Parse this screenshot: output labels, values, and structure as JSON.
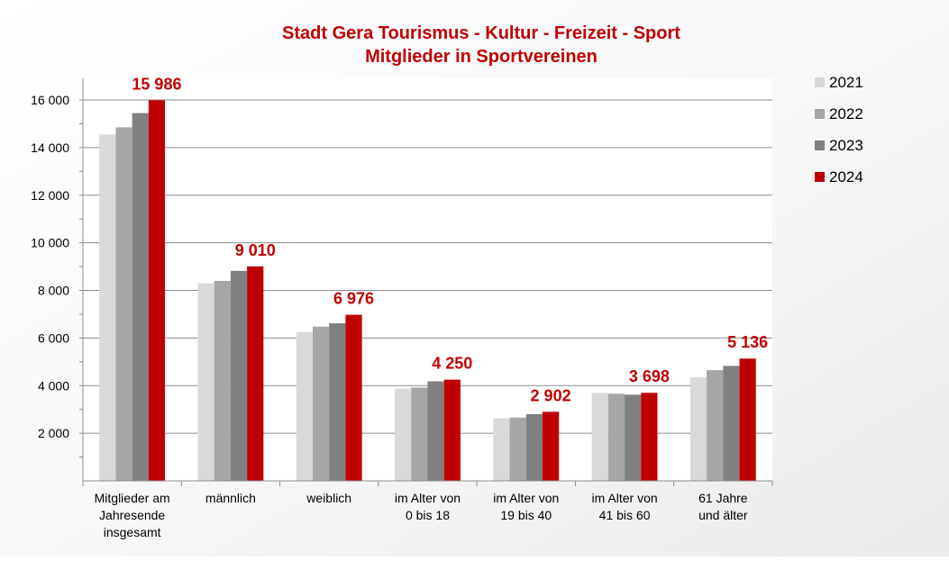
{
  "chart_data": {
    "type": "bar",
    "title": "Stadt Gera Tourismus - Kultur - Freizeit - Sport",
    "subtitle": "Mitglieder in Sportvereinen",
    "categories": [
      [
        "Mitglieder am",
        "Jahresende",
        "insgesamt"
      ],
      [
        "männlich"
      ],
      [
        "weiblich"
      ],
      [
        "im Alter von",
        "0 bis 18"
      ],
      [
        "im Alter von",
        "19 bis 40"
      ],
      [
        "im Alter von",
        "41 bis 60"
      ],
      [
        "61 Jahre",
        "und älter"
      ]
    ],
    "series": [
      {
        "name": "2021",
        "color": "#d9d9d9",
        "values": [
          14550,
          8300,
          6250,
          3870,
          2630,
          3700,
          4360
        ]
      },
      {
        "name": "2022",
        "color": "#a6a6a6",
        "values": [
          14850,
          8400,
          6480,
          3920,
          2660,
          3660,
          4650
        ]
      },
      {
        "name": "2023",
        "color": "#808080",
        "values": [
          15450,
          8820,
          6620,
          4180,
          2800,
          3620,
          4830
        ]
      },
      {
        "name": "2024",
        "color": "#c00000",
        "values": [
          15986,
          9010,
          6976,
          4250,
          2902,
          3698,
          5136
        ]
      }
    ],
    "data_labels": [
      "15 986",
      "9 010",
      "6 976",
      "4 250",
      "2 902",
      "3 698",
      "5 136"
    ],
    "y_tick_labels": [
      "2 000",
      "4 000",
      "6 000",
      "8 000",
      "10 000",
      "12 000",
      "14 000",
      "16 000"
    ],
    "y_ticks": [
      2000,
      4000,
      6000,
      8000,
      10000,
      12000,
      14000,
      16000
    ],
    "ylim": [
      0,
      16000
    ],
    "grid": true,
    "legend_position": "right",
    "title_color": "#c00000",
    "label_color": "#c00000"
  }
}
